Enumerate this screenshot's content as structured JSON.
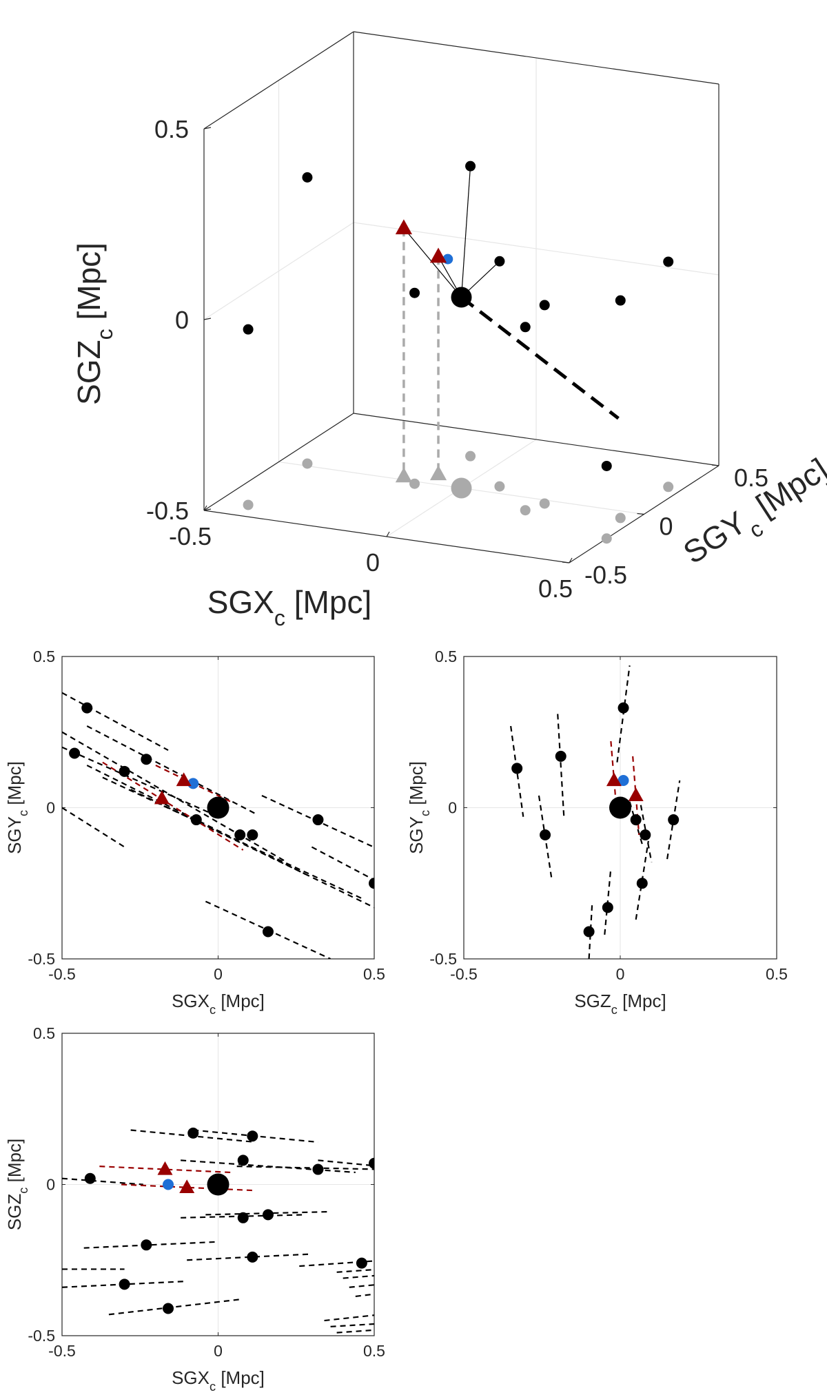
{
  "colors": {
    "black": "#000000",
    "grey": "#aaaaaa",
    "dark_red": "#990000",
    "blue": "#1f6fd6",
    "grid": "#e6e6e6",
    "axis": "#262626"
  },
  "chart_data": [
    {
      "type": "scatter3d",
      "id": "3d",
      "xlabel": "SGX",
      "ylabel": "SGY",
      "zlabel": "SGZ",
      "label_sub": "c",
      "label_unit": " [Mpc]",
      "xlim": [
        -0.5,
        0.5
      ],
      "ylim": [
        -0.5,
        0.5
      ],
      "zlim": [
        -0.5,
        0.5
      ],
      "xticks": [
        "-0.5",
        "0",
        "0.5"
      ],
      "yticks": [
        "-0.5",
        "0",
        "0.5"
      ],
      "zticks": [
        "-0.5",
        "0",
        "0.5"
      ],
      "points": [
        {
          "x": -0.43,
          "y": 0.02,
          "z": 0.25
        },
        {
          "x": -0.09,
          "y": 0.28,
          "z": 0.26
        },
        {
          "x": -0.12,
          "y": -0.02,
          "z": 0.0
        },
        {
          "x": -0.42,
          "y": -0.4,
          "z": -0.04
        },
        {
          "x": 0.22,
          "y": -0.11,
          "z": -0.02
        },
        {
          "x": 0.24,
          "y": -0.03,
          "z": 0.02
        },
        {
          "x": 0.08,
          "y": 0.06,
          "z": 0.09
        },
        {
          "x": 0.46,
          "y": 0.26,
          "z": 0.09
        },
        {
          "x": 0.46,
          "y": -0.06,
          "z": 0.07
        },
        {
          "x": 0.5,
          "y": -0.25,
          "z": -0.31
        }
      ],
      "host": {
        "x": 0.0,
        "y": 0.0,
        "z": 0.0
      },
      "blue_point": {
        "x": -0.07,
        "y": 0.08,
        "z": 0.07
      },
      "triangles": [
        {
          "x": -0.17,
          "y": 0.03,
          "z": 0.15
        },
        {
          "x": -0.1,
          "y": 0.09,
          "z": 0.07
        }
      ],
      "dashed_line": [
        {
          "x": 0.0,
          "y": 0.0,
          "z": 0.0
        },
        {
          "x": 0.52,
          "y": -0.22,
          "z": -0.19
        }
      ]
    },
    {
      "type": "scatter",
      "id": "xy",
      "xlabel": "SGX",
      "ylabel": "SGY",
      "label_sub": "c",
      "label_unit": " [Mpc]",
      "xlim": [
        -0.5,
        0.5
      ],
      "ylim": [
        -0.5,
        0.5
      ],
      "xticks": [
        "-0.5",
        "0",
        "0.5"
      ],
      "yticks": [
        "-0.5",
        "0",
        "0.5"
      ],
      "host": {
        "x": 0.0,
        "y": 0.0
      },
      "blue_point": {
        "x": -0.08,
        "y": 0.08
      },
      "points": [
        {
          "x": -0.42,
          "y": 0.33,
          "seg": [
            -0.5,
            0.38,
            -0.16,
            0.19
          ]
        },
        {
          "x": -0.46,
          "y": 0.18,
          "seg": [
            -0.5,
            0.2,
            -0.02,
            -0.02
          ]
        },
        {
          "x": -0.3,
          "y": 0.12,
          "seg": [
            -0.5,
            0.25,
            0.22,
            -0.18
          ]
        },
        {
          "x": -0.23,
          "y": 0.16,
          "seg": [
            -0.42,
            0.27,
            0.12,
            -0.02
          ]
        },
        {
          "x": -0.07,
          "y": -0.04,
          "seg": [
            -0.42,
            0.14,
            0.28,
            -0.22
          ]
        },
        {
          "x": 0.07,
          "y": -0.09,
          "seg": [
            -0.37,
            0.1,
            0.46,
            -0.3
          ]
        },
        {
          "x": 0.11,
          "y": -0.09,
          "seg": [
            -0.28,
            0.06,
            0.5,
            -0.33
          ]
        },
        {
          "x": 0.32,
          "y": -0.04,
          "seg": [
            0.14,
            0.04,
            0.54,
            -0.15
          ]
        },
        {
          "x": 0.5,
          "y": -0.25,
          "seg": [
            0.3,
            -0.13,
            0.52,
            -0.25
          ]
        },
        {
          "x": 0.16,
          "y": -0.41,
          "seg": [
            -0.04,
            -0.31,
            0.36,
            -0.5
          ]
        }
      ],
      "extra_dashes": [
        [
          -0.5,
          0.0,
          -0.3,
          -0.13
        ]
      ],
      "triangles": [
        {
          "x": -0.11,
          "y": 0.09,
          "seg": [
            -0.2,
            0.14,
            0.04,
            0.02
          ]
        },
        {
          "x": -0.18,
          "y": 0.03,
          "seg": [
            -0.37,
            0.15,
            0.08,
            -0.14
          ]
        }
      ]
    },
    {
      "type": "scatter",
      "id": "zy",
      "xlabel": "SGZ",
      "ylabel": "SGY",
      "label_sub": "c",
      "label_unit": " [Mpc]",
      "xlim": [
        -0.5,
        0.5
      ],
      "ylim": [
        -0.5,
        0.5
      ],
      "xticks": [
        "-0.5",
        "0",
        "0.5"
      ],
      "yticks": [
        "-0.5",
        "0",
        "0.5"
      ],
      "host": {
        "x": 0.0,
        "y": 0.0
      },
      "blue_point": {
        "x": 0.01,
        "y": 0.09
      },
      "points": [
        {
          "x": -0.33,
          "y": 0.13,
          "seg": [
            -0.35,
            0.27,
            -0.31,
            -0.03
          ]
        },
        {
          "x": -0.19,
          "y": 0.17,
          "seg": [
            -0.2,
            0.31,
            -0.18,
            -0.03
          ]
        },
        {
          "x": 0.01,
          "y": 0.33,
          "seg": [
            -0.01,
            0.15,
            0.03,
            0.47
          ]
        },
        {
          "x": -0.24,
          "y": -0.09,
          "seg": [
            -0.26,
            0.04,
            -0.22,
            -0.23
          ]
        },
        {
          "x": 0.05,
          "y": -0.04,
          "seg": [
            0.03,
            0.02,
            0.07,
            -0.12
          ]
        },
        {
          "x": 0.08,
          "y": -0.09,
          "seg": [
            0.06,
            0.04,
            0.1,
            -0.18
          ]
        },
        {
          "x": 0.17,
          "y": -0.04,
          "seg": [
            0.15,
            -0.17,
            0.19,
            0.09
          ]
        },
        {
          "x": 0.07,
          "y": -0.25,
          "seg": [
            0.05,
            -0.37,
            0.09,
            -0.11
          ]
        },
        {
          "x": -0.04,
          "y": -0.33,
          "seg": [
            -0.05,
            -0.42,
            -0.03,
            -0.2
          ]
        },
        {
          "x": -0.1,
          "y": -0.41,
          "seg": [
            -0.1,
            -0.5,
            -0.09,
            -0.32
          ]
        }
      ],
      "extra_dashes": [],
      "triangles": [
        {
          "x": -0.02,
          "y": 0.09,
          "seg": [
            -0.03,
            0.22,
            -0.01,
            -0.03
          ]
        },
        {
          "x": 0.05,
          "y": 0.04,
          "seg": [
            0.04,
            0.17,
            0.06,
            -0.09
          ]
        }
      ]
    },
    {
      "type": "scatter",
      "id": "xz",
      "xlabel": "SGX",
      "ylabel": "SGZ",
      "label_sub": "c",
      "label_unit": " [Mpc]",
      "xlim": [
        -0.5,
        0.5
      ],
      "ylim": [
        -0.5,
        0.5
      ],
      "xticks": [
        "-0.5",
        "0",
        "0.5"
      ],
      "yticks": [
        "-0.5",
        "0",
        "0.5"
      ],
      "host": {
        "x": 0.0,
        "y": 0.0
      },
      "blue_point": {
        "x": -0.16,
        "y": 0.0
      },
      "points": [
        {
          "x": -0.08,
          "y": 0.17,
          "seg": [
            -0.28,
            0.18,
            0.12,
            0.14
          ]
        },
        {
          "x": 0.11,
          "y": 0.16,
          "seg": [
            -0.08,
            0.18,
            0.32,
            0.14
          ]
        },
        {
          "x": 0.08,
          "y": 0.08,
          "seg": [
            -0.12,
            0.08,
            0.44,
            0.04
          ]
        },
        {
          "x": 0.32,
          "y": 0.05,
          "seg": [
            0.06,
            0.06,
            0.52,
            0.05
          ]
        },
        {
          "x": 0.5,
          "y": 0.07,
          "seg": [
            0.32,
            0.08,
            0.52,
            0.06
          ]
        },
        {
          "x": -0.41,
          "y": 0.02,
          "seg": [
            -0.5,
            0.02,
            -0.24,
            0.0
          ]
        },
        {
          "x": 0.16,
          "y": -0.1,
          "seg": [
            -0.04,
            -0.1,
            0.36,
            -0.09
          ]
        },
        {
          "x": 0.08,
          "y": -0.11,
          "seg": [
            -0.12,
            -0.11,
            0.28,
            -0.1
          ]
        },
        {
          "x": -0.23,
          "y": -0.2,
          "seg": [
            -0.43,
            -0.21,
            -0.01,
            -0.19
          ]
        },
        {
          "x": 0.11,
          "y": -0.24,
          "seg": [
            -0.1,
            -0.25,
            0.3,
            -0.23
          ]
        },
        {
          "x": 0.46,
          "y": -0.26,
          "seg": [
            0.26,
            -0.27,
            0.54,
            -0.25
          ]
        },
        {
          "x": -0.3,
          "y": -0.33,
          "seg": [
            -0.5,
            -0.34,
            -0.1,
            -0.32
          ]
        },
        {
          "x": -0.16,
          "y": -0.41,
          "seg": [
            -0.35,
            -0.43,
            0.07,
            -0.38
          ]
        }
      ],
      "extra_dashes": [
        [
          -0.5,
          -0.28,
          -0.3,
          -0.28
        ],
        [
          0.38,
          -0.29,
          0.52,
          -0.28
        ],
        [
          0.4,
          -0.31,
          0.52,
          -0.3
        ],
        [
          0.42,
          -0.34,
          0.52,
          -0.33
        ],
        [
          0.44,
          -0.37,
          0.52,
          -0.36
        ],
        [
          0.34,
          -0.45,
          0.52,
          -0.43
        ],
        [
          0.36,
          -0.47,
          0.52,
          -0.46
        ],
        [
          0.38,
          -0.49,
          0.52,
          -0.48
        ]
      ],
      "triangles": [
        {
          "x": -0.17,
          "y": 0.05,
          "seg": [
            -0.38,
            0.06,
            0.04,
            0.04
          ]
        },
        {
          "x": -0.1,
          "y": -0.01,
          "seg": [
            -0.31,
            0.0,
            0.12,
            -0.02
          ]
        }
      ]
    }
  ]
}
